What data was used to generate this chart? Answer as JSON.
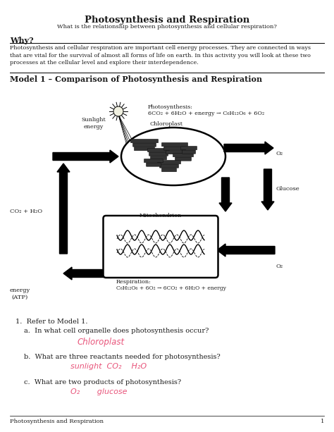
{
  "title": "Photosynthesis and Respiration",
  "subtitle": "What is the relationship between photosynthesis and cellular respiration?",
  "why_header": "Why?",
  "why_text": "Photosynthesis and cellular respiration are important cell energy processes. They are connected in ways\nthat are vital for the survival of almost all forms of life on earth. In this activity you will look at these two\nprocesses at the cellular level and explore their interdependence.",
  "model_header": "Model 1 – Comparison of Photosynthesis and Respiration",
  "photo_label": "Photosynthesis:",
  "photosynthesis_eq": "6CO₂ + 6H₂O + energy → C₆H₁₂O₆ + 6O₂",
  "resp_label": "Respiration:",
  "respiration_eq": "C₆H₁₂O₆ + 6O₂ → 6CO₂ + 6H₂O + energy",
  "footer": "Photosynthesis and Respiration",
  "page_num": "1",
  "q1": "1.  Refer to Model 1.",
  "qa": "a.  In what cell organelle does photosynthesis occur?",
  "qb": "b.  What are three reactants needed for photosynthesis?",
  "qc": "c.  What are two products of photosynthesis?",
  "ans_a": "Chloroplast",
  "ans_b": "sunlight  CO₂    H₂O",
  "ans_c": "O₂       glucose",
  "handwriting_color": "#e8547a",
  "bg_color": "#ffffff",
  "text_color": "#1a1a1a",
  "arrow_color": "#1a1a1a"
}
